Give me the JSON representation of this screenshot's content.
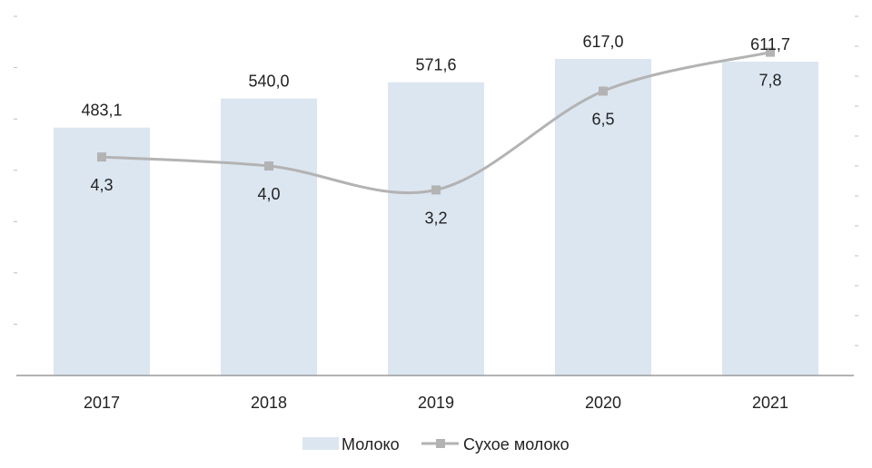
{
  "chart_data": {
    "type": "bar",
    "categories": [
      "2017",
      "2018",
      "2019",
      "2020",
      "2021"
    ],
    "series": [
      {
        "name": "Молоко",
        "type": "bar",
        "axis": "left",
        "values": [
          483.1,
          540.0,
          571.6,
          617.0,
          611.7
        ],
        "labels": [
          "483,1",
          "540,0",
          "571,6",
          "617,0",
          "611,7"
        ],
        "color": "#dce6f1"
      },
      {
        "name": "Сухое молоко",
        "type": "line",
        "axis": "right",
        "values": [
          4.3,
          4.0,
          3.2,
          6.5,
          7.8
        ],
        "labels": [
          "4,3",
          "4,0",
          "3,2",
          "6,5",
          "7,8"
        ],
        "color": "#b3b3b3"
      }
    ],
    "ylim_left": [
      0,
      700
    ],
    "ylim_right": [
      -3,
      9
    ],
    "grid": false,
    "legend": "bottom-center",
    "title": "",
    "xlabel": "",
    "ylabel": ""
  }
}
